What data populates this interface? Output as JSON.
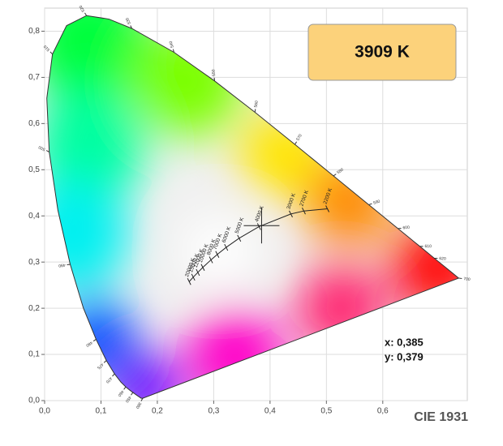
{
  "chart_data": {
    "type": "chromaticity",
    "badge": "3909 K",
    "footer": "CIE 1931",
    "xlim": [
      0,
      0.75
    ],
    "ylim": [
      0,
      0.85
    ],
    "xticks": [
      {
        "value": 0,
        "label": "0,0"
      },
      {
        "value": 0.1,
        "label": "0,1"
      },
      {
        "value": 0.2,
        "label": "0,2"
      },
      {
        "value": 0.3,
        "label": "0,3"
      },
      {
        "value": 0.4,
        "label": "0,4"
      },
      {
        "value": 0.5,
        "label": "0,5"
      },
      {
        "value": 0.6,
        "label": "0,6"
      }
    ],
    "yticks": [
      {
        "value": 0,
        "label": "0,0"
      },
      {
        "value": 0.1,
        "label": "0,1"
      },
      {
        "value": 0.2,
        "label": "0,2"
      },
      {
        "value": 0.3,
        "label": "0,3"
      },
      {
        "value": 0.4,
        "label": "0,4"
      },
      {
        "value": 0.5,
        "label": "0,5"
      },
      {
        "value": 0.6,
        "label": "0,6"
      },
      {
        "value": 0.7,
        "label": "0,7"
      },
      {
        "value": 0.8,
        "label": "0,8"
      }
    ],
    "grid": true,
    "spectral_locus": {
      "labels": [
        "380",
        null,
        null,
        null,
        "450",
        null,
        "460",
        null,
        "470",
        "475",
        "480",
        null,
        "490",
        null,
        "500",
        null,
        "510",
        null,
        "520",
        null,
        "530",
        "540",
        "550",
        "560",
        "570",
        "580",
        "590",
        "600",
        "610",
        "620",
        null,
        null,
        "700"
      ],
      "x": [
        0.1741,
        0.1714,
        0.1644,
        0.1566,
        0.1566,
        0.151,
        0.144,
        0.1355,
        0.1241,
        0.1096,
        0.0913,
        0.0687,
        0.0454,
        0.0235,
        0.0082,
        0.0039,
        0.0139,
        0.0389,
        0.0743,
        0.1142,
        0.1547,
        0.2296,
        0.3016,
        0.3731,
        0.4441,
        0.5125,
        0.5752,
        0.627,
        0.6658,
        0.6915,
        0.7079,
        0.719,
        0.7347
      ],
      "y": [
        0.005,
        0.0051,
        0.0109,
        0.0177,
        0.0177,
        0.0227,
        0.0297,
        0.0399,
        0.0578,
        0.0868,
        0.1327,
        0.2007,
        0.295,
        0.4127,
        0.5384,
        0.6548,
        0.7502,
        0.812,
        0.8338,
        0.8262,
        0.8059,
        0.7543,
        0.6923,
        0.6245,
        0.5547,
        0.4866,
        0.4242,
        0.3725,
        0.334,
        0.3083,
        0.292,
        0.2809,
        0.2653
      ]
    },
    "planckian_locus": {
      "labels": [
        "2200 K",
        "2700 K",
        "3000 K",
        "4000 K",
        "5000 K",
        "6000 K",
        "7000 K",
        "8000 K",
        "10000 K",
        "12000 K",
        "15000 K",
        "20000 K"
      ],
      "x": [
        0.5018,
        0.4599,
        0.4369,
        0.3805,
        0.3451,
        0.3221,
        0.3064,
        0.2952,
        0.2807,
        0.2719,
        0.2637,
        0.2565
      ],
      "y": [
        0.4153,
        0.4106,
        0.4041,
        0.3768,
        0.3516,
        0.3318,
        0.3166,
        0.3048,
        0.2884,
        0.2776,
        0.2673,
        0.2577
      ]
    },
    "measured": {
      "x": 0.385,
      "y": 0.379,
      "x_label": "x: 0,385",
      "y_label": "y: 0,379"
    }
  }
}
